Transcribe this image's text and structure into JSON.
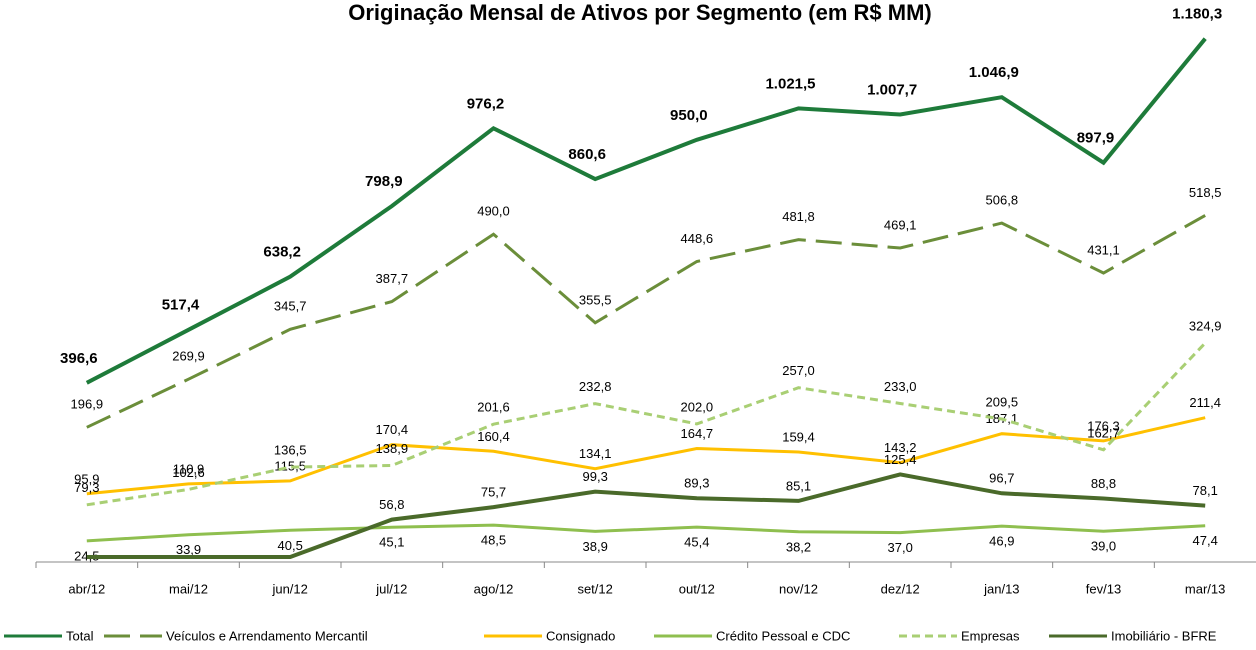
{
  "chart_data": {
    "type": "line",
    "title": "Originação Mensal de Ativos por Segmento (em R$ MM)",
    "categories": [
      "abr/12",
      "mai/12",
      "jun/12",
      "jul/12",
      "ago/12",
      "set/12",
      "out/12",
      "nov/12",
      "dez/12",
      "jan/13",
      "fev/13",
      "mar/13"
    ],
    "ylim": [
      0,
      800
    ],
    "y2lim": [
      0,
      1200
    ],
    "legend": "bottom",
    "series": [
      {
        "name": "Total",
        "color": "#1e7b3a",
        "axis": "y2",
        "values": [
          396.6,
          517.4,
          638.2,
          798.9,
          976.2,
          860.6,
          950.0,
          1021.5,
          1007.7,
          1046.9,
          897.9,
          1180.3
        ],
        "value_labels": [
          "396,6",
          "517,4",
          "638,2",
          "798,9",
          "976,2",
          "860,6",
          "950,0",
          "1.021,5",
          "1.007,7",
          "1.046,9",
          "897,9",
          "1.180,3"
        ]
      },
      {
        "name": "Veículos e Arrendamento Mercantil",
        "color": "#6b8e3a",
        "dash": "dashed",
        "values": [
          196.9,
          269.9,
          345.7,
          387.7,
          490.0,
          355.5,
          448.6,
          481.8,
          469.1,
          506.8,
          431.1,
          518.5
        ],
        "value_labels": [
          "196,9",
          "269,9",
          "345,7",
          "387,7",
          "490,0",
          "355,5",
          "448,6",
          "481,8",
          "469,1",
          "506,8",
          "431,1",
          "518,5"
        ]
      },
      {
        "name": "Consignado",
        "color": "#ffc000",
        "values": [
          95.9,
          110.9,
          115.5,
          170.4,
          160.4,
          134.1,
          164.7,
          159.4,
          143.2,
          187.1,
          176.3,
          211.4
        ],
        "value_labels": [
          "95,9",
          "110,9",
          "115,5",
          "170,4",
          "160,4",
          "134,1",
          "164,7",
          "159,4",
          "143,2",
          "187,1",
          "176,3",
          "211,4"
        ]
      },
      {
        "name": "Crédito Pessoal e CDC",
        "color": "#8fbf4f",
        "values": [
          24.5,
          33.9,
          40.5,
          45.1,
          48.5,
          38.9,
          45.4,
          38.2,
          37.0,
          46.9,
          39.0,
          47.4
        ],
        "value_labels": [
          "24,5",
          "33,9",
          "40,5",
          "45,1",
          "48,5",
          "38,9",
          "45,4",
          "38,2",
          "37,0",
          "46,9",
          "39,0",
          "47,4"
        ]
      },
      {
        "name": "Empresas",
        "color": "#a9cf74",
        "dash": "dotdash",
        "values": [
          79.3,
          102.6,
          136.5,
          138.9,
          201.6,
          232.8,
          202.0,
          257.0,
          233.0,
          209.5,
          162.7,
          324.9
        ],
        "value_labels": [
          "79,3",
          "102,6",
          "136,5",
          "138,9",
          "201,6",
          "232,8",
          "202,0",
          "257,0",
          "233,0",
          "209,5",
          "162,7",
          "324,9"
        ]
      },
      {
        "name": "Imobiliário - BFRE",
        "color": "#4a6a2a",
        "values": [
          0,
          0,
          0,
          56.8,
          75.7,
          99.3,
          89.3,
          85.1,
          125.4,
          96.7,
          88.8,
          78.1
        ],
        "value_labels": [
          null,
          null,
          null,
          "56,8",
          "75,7",
          "99,3",
          "89,3",
          "85,1",
          "125,4",
          "96,7",
          "88,8",
          "78,1"
        ]
      }
    ]
  }
}
